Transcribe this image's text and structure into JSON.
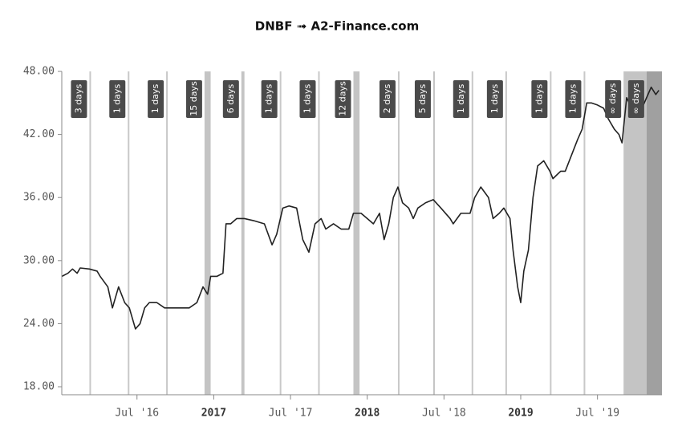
{
  "chart_data": {
    "type": "line",
    "title": "DNBF ➟ A2-Finance.com",
    "x": [
      2016.01,
      2016.05,
      2016.08,
      2016.11,
      2016.13,
      2016.19,
      2016.24,
      2016.26,
      2016.31,
      2016.34,
      2016.38,
      2016.42,
      2016.45,
      2016.49,
      2016.52,
      2016.55,
      2016.58,
      2016.63,
      2016.68,
      2016.73,
      2016.79,
      2016.84,
      2016.89,
      2016.93,
      2016.96,
      2016.98,
      2017.02,
      2017.06,
      2017.08,
      2017.11,
      2017.15,
      2017.2,
      2017.26,
      2017.33,
      2017.38,
      2017.41,
      2017.45,
      2017.49,
      2017.54,
      2017.58,
      2017.62,
      2017.66,
      2017.7,
      2017.73,
      2017.78,
      2017.83,
      2017.88,
      2017.91,
      2017.96,
      2018.0,
      2018.04,
      2018.08,
      2018.11,
      2018.14,
      2018.17,
      2018.2,
      2018.23,
      2018.27,
      2018.3,
      2018.33,
      2018.38,
      2018.43,
      2018.48,
      2018.54,
      2018.56,
      2018.61,
      2018.67,
      2018.7,
      2018.74,
      2018.79,
      2018.82,
      2018.86,
      2018.89,
      2018.93,
      2018.95,
      2018.98,
      2019.0,
      2019.02,
      2019.05,
      2019.08,
      2019.11,
      2019.15,
      2019.19,
      2019.21,
      2019.26,
      2019.29,
      2019.33,
      2019.37,
      2019.4,
      2019.43,
      2019.46,
      2019.5,
      2019.54,
      2019.57,
      2019.61,
      2019.64,
      2019.66,
      2019.69,
      2019.74,
      2019.76,
      2019.79,
      2019.82,
      2019.85,
      2019.88,
      2019.9
    ],
    "values": [
      28.5,
      28.8,
      29.2,
      28.8,
      29.3,
      29.2,
      29.0,
      28.5,
      27.5,
      25.5,
      27.5,
      26.0,
      25.5,
      23.5,
      24.0,
      25.5,
      26.0,
      26.0,
      25.5,
      25.5,
      25.5,
      25.5,
      26.0,
      27.5,
      26.8,
      28.5,
      28.5,
      28.8,
      33.5,
      33.5,
      34.0,
      34.0,
      33.8,
      33.5,
      31.5,
      32.5,
      35.0,
      35.2,
      35.0,
      32.0,
      30.8,
      33.5,
      34.0,
      33.0,
      33.5,
      33.0,
      33.0,
      34.5,
      34.5,
      34.0,
      33.5,
      34.5,
      32.0,
      33.5,
      36.0,
      37.0,
      35.5,
      35.0,
      34.0,
      35.0,
      35.5,
      35.8,
      35.0,
      34.0,
      33.5,
      34.5,
      34.5,
      36.0,
      37.0,
      36.0,
      34.0,
      34.5,
      35.0,
      34.0,
      31.0,
      27.5,
      26.0,
      29.0,
      31.0,
      36.0,
      39.0,
      39.5,
      38.5,
      37.8,
      38.5,
      38.5,
      40.0,
      41.5,
      42.5,
      45.0,
      45.0,
      44.8,
      44.5,
      43.5,
      42.5,
      42.0,
      41.2,
      45.5,
      44.0,
      43.8,
      44.5,
      45.5,
      46.5,
      45.8,
      46.2
    ],
    "color": "#222222",
    "xlim": [
      2016.01,
      2019.92
    ],
    "xticks": [
      {
        "value": 2016.5,
        "label": "Jul '16"
      },
      {
        "value": 2017,
        "label": "2017"
      },
      {
        "value": 2017.5,
        "label": "Jul '17"
      },
      {
        "value": 2018,
        "label": "2018"
      },
      {
        "value": 2018.5,
        "label": "Jul '18"
      },
      {
        "value": 2019,
        "label": "2019"
      },
      {
        "value": 2019.5,
        "label": "Jul '19"
      }
    ],
    "ylim": [
      17.24,
      48
    ],
    "yticks": [
      {
        "value": 18,
        "label": "18.00"
      },
      {
        "value": 24,
        "label": "24.00"
      },
      {
        "value": 30,
        "label": "30.00"
      },
      {
        "value": 36,
        "label": "36.00"
      },
      {
        "value": 42,
        "label": "42.00"
      },
      {
        "value": 48,
        "label": "48.00"
      }
    ],
    "grid": false,
    "events": [
      {
        "start": 2016.19,
        "end": 2016.2,
        "label": "3 days",
        "color": "#c8c8c8"
      },
      {
        "start": 2016.44,
        "end": 2016.45,
        "label": "1 days",
        "color": "#c8c8c8"
      },
      {
        "start": 2016.69,
        "end": 2016.7,
        "label": "1 days",
        "color": "#c8c8c8"
      },
      {
        "start": 2016.94,
        "end": 2016.98,
        "label": "15 days",
        "color": "#c4c4c4"
      },
      {
        "start": 2017.18,
        "end": 2017.2,
        "label": "6 days",
        "color": "#c4c4c4"
      },
      {
        "start": 2017.43,
        "end": 2017.44,
        "label": "1 days",
        "color": "#c8c8c8"
      },
      {
        "start": 2017.68,
        "end": 2017.69,
        "label": "1 days",
        "color": "#c8c8c8"
      },
      {
        "start": 2017.91,
        "end": 2017.95,
        "label": "12 days",
        "color": "#c4c4c4"
      },
      {
        "start": 2018.2,
        "end": 2018.21,
        "label": "2 days",
        "color": "#c8c8c8"
      },
      {
        "start": 2018.43,
        "end": 2018.44,
        "label": "5 days",
        "color": "#c4c4c4"
      },
      {
        "start": 2018.68,
        "end": 2018.69,
        "label": "1 days",
        "color": "#c8c8c8"
      },
      {
        "start": 2018.9,
        "end": 2018.91,
        "label": "1 days",
        "color": "#c8c8c8"
      },
      {
        "start": 2019.19,
        "end": 2019.2,
        "label": "1 days",
        "color": "#c8c8c8"
      },
      {
        "start": 2019.41,
        "end": 2019.42,
        "label": "1 days",
        "color": "#c8c8c8"
      },
      {
        "start": 2019.67,
        "end": 2019.82,
        "label": "∞ days",
        "color": "#c4c4c4"
      },
      {
        "start": 2019.82,
        "end": 2019.92,
        "label": "∞ days",
        "color": "#a0a0a0"
      }
    ]
  }
}
